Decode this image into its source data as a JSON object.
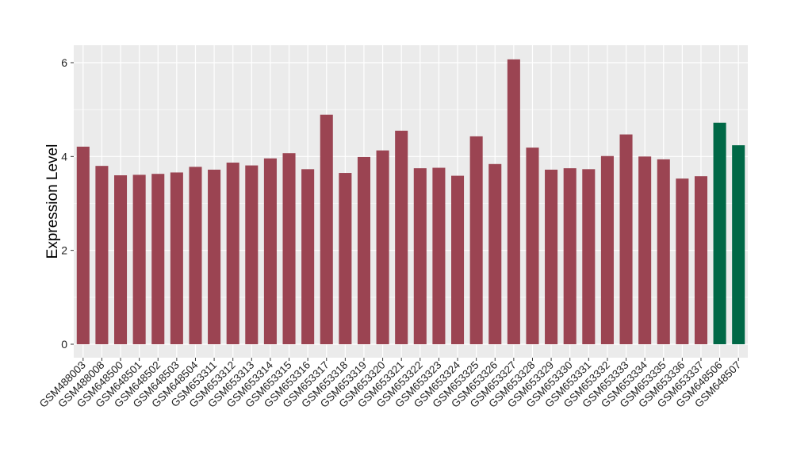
{
  "chart_data": {
    "type": "bar",
    "title": "",
    "xlabel": "",
    "ylabel": "Expression Level",
    "ylim": [
      -0.25,
      6.35
    ],
    "yticks": [
      0,
      2,
      4,
      6
    ],
    "grid": true,
    "colors": {
      "default": "#9b4452",
      "highlight": "#006846",
      "panel": "#ebebeb",
      "gridline": "#ffffff"
    },
    "categories": [
      "GSM488003",
      "GSM488008",
      "GSM648500",
      "GSM648501",
      "GSM648502",
      "GSM648503",
      "GSM648504",
      "GSM653311",
      "GSM653312",
      "GSM653313",
      "GSM653314",
      "GSM653315",
      "GSM653316",
      "GSM653317",
      "GSM653318",
      "GSM653319",
      "GSM653320",
      "GSM653321",
      "GSM653322",
      "GSM653323",
      "GSM653324",
      "GSM653325",
      "GSM653326",
      "GSM653327",
      "GSM653328",
      "GSM653329",
      "GSM653330",
      "GSM653331",
      "GSM653332",
      "GSM653333",
      "GSM653334",
      "GSM653335",
      "GSM653336",
      "GSM653337",
      "GSM648506",
      "GSM648507"
    ],
    "values": [
      4.21,
      3.8,
      3.6,
      3.61,
      3.63,
      3.66,
      3.78,
      3.72,
      3.87,
      3.81,
      3.96,
      4.07,
      3.73,
      4.89,
      3.65,
      3.99,
      4.13,
      4.55,
      3.75,
      3.76,
      3.59,
      4.43,
      3.84,
      6.07,
      4.19,
      3.72,
      3.75,
      3.73,
      4.01,
      4.47,
      4.0,
      3.94,
      3.53,
      3.58,
      4.72,
      4.24
    ],
    "highlight": [
      false,
      false,
      false,
      false,
      false,
      false,
      false,
      false,
      false,
      false,
      false,
      false,
      false,
      false,
      false,
      false,
      false,
      false,
      false,
      false,
      false,
      false,
      false,
      false,
      false,
      false,
      false,
      false,
      false,
      false,
      false,
      false,
      false,
      false,
      true,
      true
    ]
  }
}
